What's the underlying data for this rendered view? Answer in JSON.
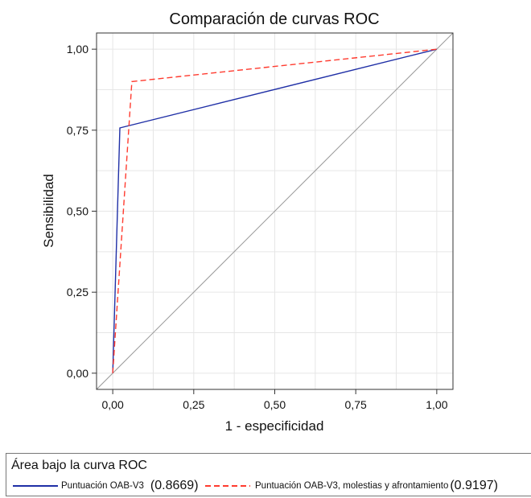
{
  "chart_data": {
    "type": "line",
    "title": "Comparación de curvas ROC",
    "xlabel": "1 - especificidad",
    "ylabel": "Sensibilidad",
    "xlim": [
      -0.05,
      1.05
    ],
    "ylim": [
      -0.05,
      1.05
    ],
    "x_ticks": [
      0,
      0.25,
      0.5,
      0.75,
      1
    ],
    "x_tick_labels": [
      "0,00",
      "0,25",
      "0,50",
      "0,75",
      "1,00"
    ],
    "y_ticks": [
      0,
      0.25,
      0.5,
      0.75,
      1
    ],
    "y_tick_labels": [
      "0,00",
      "0,25",
      "0,50",
      "0,75",
      "1,00"
    ],
    "grid": true,
    "reference_line": {
      "x": [
        0,
        1
      ],
      "y": [
        0,
        1
      ],
      "color": "#9a9a9a"
    },
    "series": [
      {
        "name": "Puntuación OAB-V3",
        "auc_label": "(0.8669)",
        "auc": 0.8669,
        "x": [
          0,
          0.022,
          1
        ],
        "y": [
          0,
          0.757,
          1
        ],
        "color": "#1f2fa6",
        "dash": "solid"
      },
      {
        "name": "Puntuación OAB-V3, molestias y afrontamiento",
        "auc_label": "(0.9197)",
        "auc": 0.9197,
        "x": [
          0,
          0.059,
          1
        ],
        "y": [
          0,
          0.9,
          1
        ],
        "color": "#ff3b2f",
        "dash": "dashed"
      }
    ],
    "legend": {
      "title": "Área bajo la curva ROC",
      "position": "bottom"
    }
  }
}
